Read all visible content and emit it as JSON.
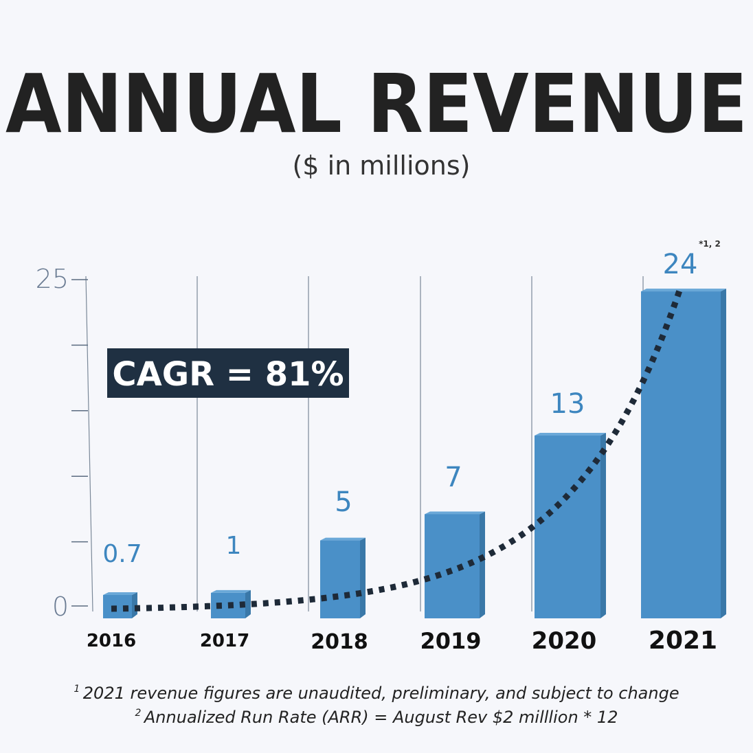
{
  "chart_data": {
    "type": "bar",
    "title": "ANNUAL REVENUE",
    "subtitle": "($ in millions)",
    "categories": [
      "2016",
      "2017",
      "2018",
      "2019",
      "2020",
      "2021"
    ],
    "values": [
      0.7,
      1,
      5,
      7,
      13,
      24
    ],
    "value_labels": [
      "0.7",
      "1",
      "5",
      "7",
      "13",
      "24"
    ],
    "last_value_superscript": "*1, 2",
    "ylim": [
      0,
      25
    ],
    "y_tick_labels": [
      "0",
      "25"
    ],
    "xlabel": "",
    "ylabel": "",
    "grid": true,
    "trend_line": "dotted exponential",
    "annotation": "CAGR = 81%",
    "colors": {
      "bar": "#4a90c8",
      "bar_side": "#3a78a8",
      "bar_top": "#6aa8d8",
      "value_label": "#3d86bf",
      "trend": "#1e2a38",
      "annotation_bg": "#1f3042",
      "axis": "#5a6b80"
    }
  },
  "footnotes": [
    {
      "mark": "1",
      "text": "2021 revenue figures are unaudited, preliminary, and subject to change"
    },
    {
      "mark": "2",
      "text": "Annualized Run Rate (ARR) = August Rev $2 milllion * 12"
    }
  ]
}
